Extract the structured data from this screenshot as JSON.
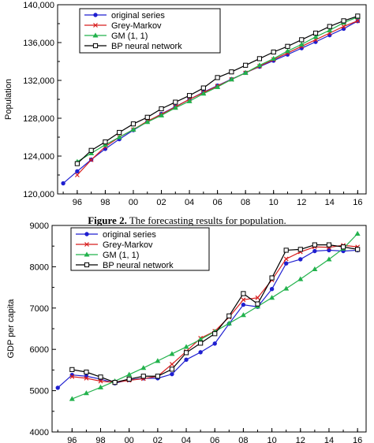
{
  "caption": {
    "figure_label": "Figure 2.",
    "text": " The forecasting results for population."
  },
  "chart_data": [
    {
      "type": "line",
      "ylabel": "Population",
      "xlabel": "",
      "x": [
        1995,
        1996,
        1997,
        1998,
        1999,
        2000,
        2001,
        2002,
        2003,
        2004,
        2005,
        2006,
        2007,
        2008,
        2009,
        2010,
        2011,
        2012,
        2013,
        2014,
        2015,
        2016
      ],
      "x_tick_values": [
        1996,
        1998,
        2000,
        2002,
        2004,
        2006,
        2008,
        2010,
        2012,
        2014,
        2016
      ],
      "x_tick_labels": [
        "96",
        "98",
        "00",
        "02",
        "04",
        "06",
        "08",
        "10",
        "12",
        "14",
        "16"
      ],
      "ylim": [
        120000,
        140000
      ],
      "y_tick_values": [
        120000,
        124000,
        128000,
        132000,
        136000,
        140000
      ],
      "y_tick_labels": [
        "120,000",
        "124,000",
        "128,000",
        "132,000",
        "136,000",
        "140,000"
      ],
      "legend_position": "top-left",
      "series": [
        {
          "name": "original series",
          "color": "#1f1fd0",
          "marker": "dot",
          "values": [
            121121,
            122389,
            123626,
            124761,
            125786,
            126743,
            127627,
            128453,
            129227,
            129988,
            130756,
            131448,
            132129,
            132802,
            133450,
            134091,
            134735,
            135404,
            136072,
            136782,
            137462,
            138271
          ]
        },
        {
          "name": "Grey-Markov",
          "color": "#d81e1e",
          "marker": "x",
          "values": [
            null,
            122000,
            123600,
            125000,
            126000,
            126800,
            127700,
            128400,
            129200,
            130000,
            130700,
            131400,
            132100,
            132800,
            133500,
            134200,
            134900,
            135600,
            136300,
            137000,
            137700,
            138300
          ]
        },
        {
          "name": "GM (1, 1)",
          "color": "#22b24c",
          "marker": "triangle",
          "values": [
            null,
            123400,
            124300,
            125200,
            126000,
            126800,
            127600,
            128300,
            129100,
            129800,
            130600,
            131300,
            132100,
            132800,
            133600,
            134300,
            135100,
            135800,
            136600,
            137300,
            138100,
            138700
          ]
        },
        {
          "name": "BP neural network",
          "color": "#000000",
          "marker": "square",
          "values": [
            null,
            123200,
            124600,
            125500,
            126500,
            127400,
            128100,
            129000,
            129700,
            130400,
            131200,
            132300,
            132900,
            133600,
            134300,
            135000,
            135600,
            136300,
            137000,
            137700,
            138300,
            138800
          ]
        }
      ]
    },
    {
      "type": "line",
      "ylabel": "GDP per capita",
      "xlabel": "",
      "x": [
        1995,
        1996,
        1997,
        1998,
        1999,
        2000,
        2001,
        2002,
        2003,
        2004,
        2005,
        2006,
        2007,
        2008,
        2009,
        2010,
        2011,
        2012,
        2013,
        2014,
        2015,
        2016
      ],
      "x_tick_values": [
        1996,
        1998,
        2000,
        2002,
        2004,
        2006,
        2008,
        2010,
        2012,
        2014,
        2016
      ],
      "x_tick_labels": [
        "96",
        "98",
        "00",
        "02",
        "04",
        "06",
        "08",
        "10",
        "12",
        "14",
        "16"
      ],
      "ylim": [
        4000,
        9000
      ],
      "y_tick_values": [
        4000,
        5000,
        6000,
        7000,
        8000,
        9000
      ],
      "y_tick_labels": [
        "4000",
        "5000",
        "6000",
        "7000",
        "8000",
        "9000"
      ],
      "legend_position": "top-left",
      "series": [
        {
          "name": "original series",
          "color": "#1f1fd0",
          "marker": "dot",
          "values": [
            5070,
            5380,
            5350,
            5280,
            5180,
            5260,
            5300,
            5300,
            5400,
            5750,
            5930,
            6140,
            6620,
            7080,
            7030,
            7460,
            8080,
            8180,
            8380,
            8400,
            8380,
            8400
          ]
        },
        {
          "name": "Grey-Markov",
          "color": "#d81e1e",
          "marker": "x",
          "values": [
            null,
            5340,
            5300,
            5230,
            5200,
            5250,
            5290,
            5350,
            5640,
            5950,
            6270,
            6440,
            6780,
            7200,
            7250,
            7680,
            8190,
            8360,
            8480,
            8470,
            8520,
            8480
          ]
        },
        {
          "name": "GM (1, 1)",
          "color": "#22b24c",
          "marker": "triangle",
          "values": [
            null,
            4800,
            4940,
            5080,
            5230,
            5390,
            5550,
            5720,
            5890,
            6060,
            6240,
            6430,
            6630,
            6830,
            7040,
            7250,
            7470,
            7700,
            7940,
            8180,
            8440,
            8800
          ]
        },
        {
          "name": "BP neural network",
          "color": "#000000",
          "marker": "square",
          "values": [
            null,
            5510,
            5450,
            5330,
            5200,
            5280,
            5350,
            5350,
            5520,
            5920,
            6150,
            6380,
            6810,
            7350,
            7100,
            7730,
            8400,
            8420,
            8530,
            8530,
            8480,
            8420
          ]
        }
      ]
    }
  ]
}
